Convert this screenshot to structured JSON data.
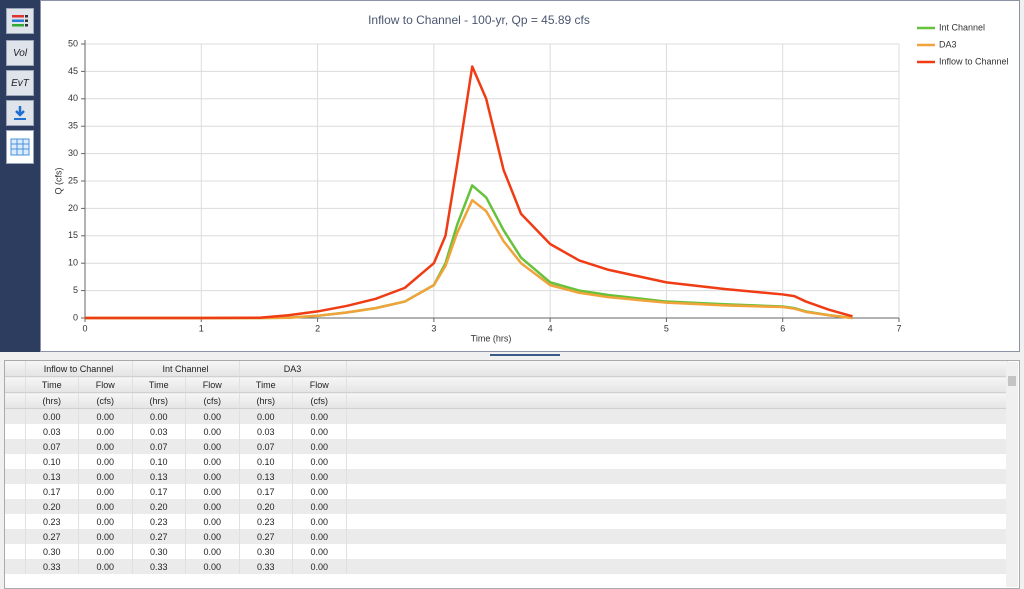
{
  "toolbar": {
    "buttons": [
      "Vol",
      "EvT"
    ]
  },
  "chart_data": {
    "type": "line",
    "title": "Inflow to Channel - 100-yr, Qp = 45.89 cfs",
    "x_label": "Time (hrs)",
    "y_label": "Q (cfs)",
    "x": [
      0,
      1,
      1.5,
      1.75,
      2,
      2.25,
      2.5,
      2.75,
      3,
      3.1,
      3.2,
      3.33,
      3.45,
      3.6,
      3.75,
      4,
      4.25,
      4.5,
      5,
      5.5,
      6,
      6.1,
      6.2,
      6.4,
      6.6
    ],
    "series": [
      {
        "name": "Int Channel",
        "color": "#66c23a",
        "values": [
          0,
          0,
          0,
          0.05,
          0.4,
          1,
          1.8,
          3,
          6,
          10,
          17,
          24.2,
          22,
          16,
          11,
          6.5,
          5,
          4.2,
          3,
          2.5,
          2.1,
          1.8,
          1.2,
          0.5,
          0
        ]
      },
      {
        "name": "DA3",
        "color": "#f0a33a",
        "values": [
          0,
          0,
          0,
          0.05,
          0.4,
          1,
          1.8,
          3,
          6,
          9.5,
          15.5,
          21.5,
          19.5,
          14,
          10,
          6,
          4.6,
          3.8,
          2.8,
          2.3,
          2,
          1.7,
          1.1,
          0.5,
          0
        ]
      },
      {
        "name": "Inflow to Channel",
        "color": "#f03c14",
        "values": [
          0,
          0,
          0.05,
          0.5,
          1.2,
          2.2,
          3.5,
          5.5,
          10,
          15,
          28,
          45.89,
          40,
          27,
          19,
          13.5,
          10.5,
          8.8,
          6.5,
          5.3,
          4.3,
          4,
          3,
          1.5,
          0.3
        ]
      }
    ],
    "xlim": [
      0,
      7
    ],
    "xticks": [
      0,
      1,
      2,
      3,
      4,
      5,
      6,
      7
    ],
    "ylim": [
      0,
      50
    ],
    "yticks": [
      0,
      5,
      10,
      15,
      20,
      25,
      30,
      35,
      40,
      45,
      50
    ],
    "grid": true,
    "legend": "right"
  },
  "table": {
    "groups": [
      "Inflow to Channel",
      "Int Channel",
      "DA3"
    ],
    "columns": [
      "Time",
      "Flow",
      "Time",
      "Flow",
      "Time",
      "Flow"
    ],
    "units": [
      "(hrs)",
      "(cfs)",
      "(hrs)",
      "(cfs)",
      "(hrs)",
      "(cfs)"
    ],
    "rows": [
      [
        "0.00",
        "0.00",
        "0.00",
        "0.00",
        "0.00",
        "0.00"
      ],
      [
        "0.03",
        "0.00",
        "0.03",
        "0.00",
        "0.03",
        "0.00"
      ],
      [
        "0.07",
        "0.00",
        "0.07",
        "0.00",
        "0.07",
        "0.00"
      ],
      [
        "0.10",
        "0.00",
        "0.10",
        "0.00",
        "0.10",
        "0.00"
      ],
      [
        "0.13",
        "0.00",
        "0.13",
        "0.00",
        "0.13",
        "0.00"
      ],
      [
        "0.17",
        "0.00",
        "0.17",
        "0.00",
        "0.17",
        "0.00"
      ],
      [
        "0.20",
        "0.00",
        "0.20",
        "0.00",
        "0.20",
        "0.00"
      ],
      [
        "0.23",
        "0.00",
        "0.23",
        "0.00",
        "0.23",
        "0.00"
      ],
      [
        "0.27",
        "0.00",
        "0.27",
        "0.00",
        "0.27",
        "0.00"
      ],
      [
        "0.30",
        "0.00",
        "0.30",
        "0.00",
        "0.30",
        "0.00"
      ],
      [
        "0.33",
        "0.00",
        "0.33",
        "0.00",
        "0.33",
        "0.00"
      ]
    ]
  }
}
